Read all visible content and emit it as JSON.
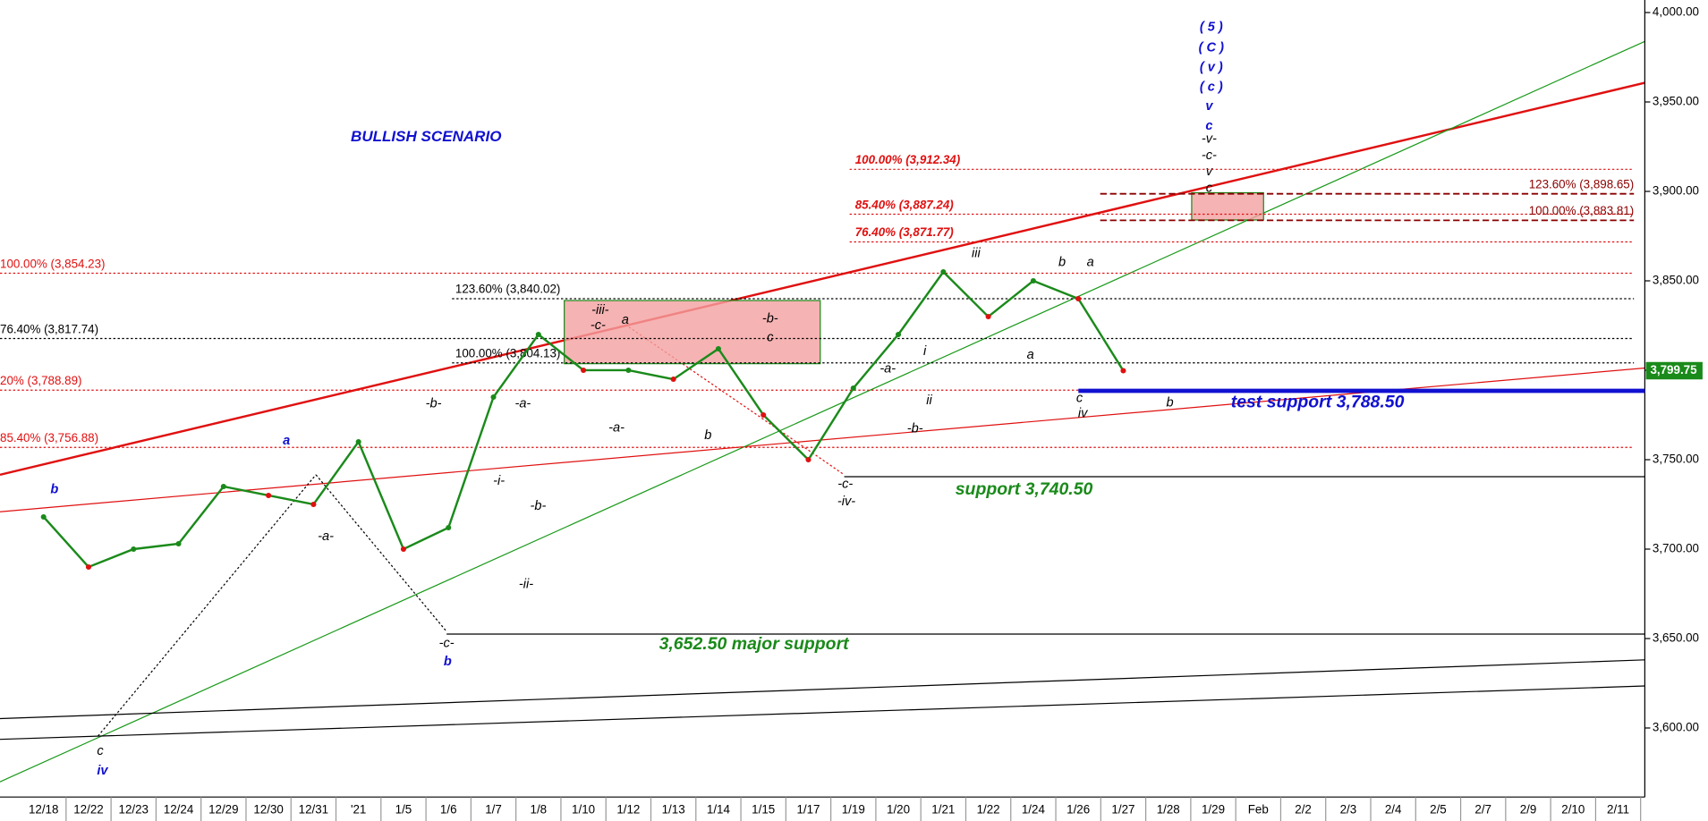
{
  "chart_data": {
    "type": "line",
    "color": "#1a8a1a",
    "categories": [
      "12/18",
      "12/22",
      "12/23",
      "12/24",
      "12/29",
      "12/30",
      "12/31",
      "'21",
      "1/5",
      "1/6",
      "1/7",
      "1/8",
      "1/10",
      "1/12",
      "1/13",
      "1/14",
      "1/15",
      "1/17",
      "1/19",
      "1/20",
      "1/21",
      "1/22",
      "1/24",
      "1/26",
      "1/27",
      "1/28",
      "1/29",
      "Feb",
      "2/2",
      "2/3",
      "2/4",
      "2/5",
      "2/7",
      "2/9",
      "2/10",
      "2/11"
    ],
    "values": [
      3718,
      3690,
      3700,
      3703,
      3735,
      3730,
      3725,
      3760,
      3700,
      3712,
      3785,
      3820,
      3800,
      3800,
      3795,
      3812,
      3775,
      3750,
      3790,
      3820,
      3855,
      3830,
      3850,
      3840,
      3799.75,
      null,
      null,
      null,
      null,
      null,
      null,
      null,
      null,
      null,
      null,
      null
    ],
    "ylim": [
      3548,
      4007
    ],
    "yticks": [
      {
        "value": 3600,
        "label": "3,600.00"
      },
      {
        "value": 3650,
        "label": "3,650.00"
      },
      {
        "value": 3700,
        "label": "3,700.00"
      },
      {
        "value": 3750,
        "label": "3,750.00"
      },
      {
        "value": 3800,
        "label": "3,800.00"
      },
      {
        "value": 3850,
        "label": "3,850.00"
      },
      {
        "value": 3900,
        "label": "3,900.00"
      },
      {
        "value": 3950,
        "label": "3,950.00"
      },
      {
        "value": 4000,
        "label": "4,000.00"
      }
    ],
    "price_label": {
      "value": 3799.75,
      "label": "3,799.75"
    },
    "levels": [
      {
        "label": "100.00% (3,912.34)",
        "value": 3912.34,
        "color": "#e01010"
      },
      {
        "label": "85.40% (3,887.24)",
        "value": 3887.24,
        "color": "#e01010"
      },
      {
        "label": "76.40% (3,871.77)",
        "value": 3871.77,
        "color": "#e01010"
      },
      {
        "label": "123.60% (3,898.65)",
        "value": 3898.65,
        "color": "#8b0000"
      },
      {
        "label": "100.00% (3,883.81)",
        "value": 3883.81,
        "color": "#8b0000"
      },
      {
        "label": "100.00% (3,854.23)",
        "value": 3854.23,
        "color": "#e01010"
      },
      {
        "label": "76.40% (3,817.74)",
        "value": 3817.74,
        "color": "#000000"
      },
      {
        "label": "20% (3,788.89)",
        "value": 3788.89,
        "color": "#e01010"
      },
      {
        "label": "85.40% (3,756.88)",
        "value": 3756.88,
        "color": "#e01010"
      },
      {
        "label": "123.60% (3,840.02)",
        "value": 3840.02,
        "color": "#000000"
      },
      {
        "label": "100.00% (3,804.13)",
        "value": 3804.13,
        "color": "#000000"
      }
    ],
    "supports": [
      {
        "value": 3652.5,
        "color": "#000000"
      },
      {
        "value": 3740.5,
        "color": "#000000"
      },
      {
        "value": 3788.5,
        "color": "#1010d0"
      }
    ],
    "notes": [
      "BULLISH SCENARIO",
      "3,652.50 major support",
      "support 3,740.50",
      "test support 3,788.50"
    ],
    "wave_labels": [
      "b",
      "c",
      "iv",
      "a",
      "-b-",
      "-a-",
      "-c-",
      "b",
      "-a-",
      "-i-",
      "-b-",
      "-ii-",
      "-iii-",
      "-c-",
      "a",
      "-a-",
      "b",
      "-b-",
      "c",
      "-a-",
      "i",
      "ii",
      "-b-",
      "-c-",
      "-iv-",
      "iii",
      "a",
      "b",
      "a",
      "c",
      "iv",
      "b",
      "( 5 )",
      "( C )",
      "( v )",
      "( c )",
      "v",
      "c",
      "-v-",
      "-c-",
      "v",
      "c"
    ]
  }
}
